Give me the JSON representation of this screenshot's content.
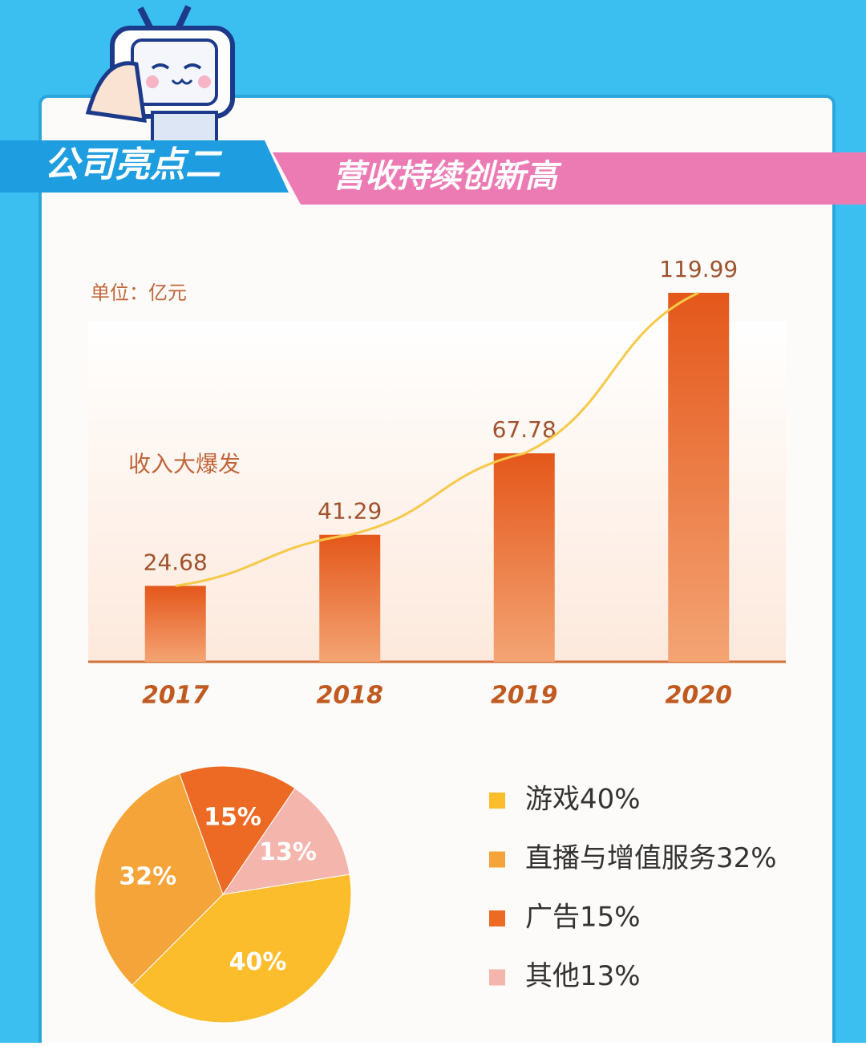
{
  "header": {
    "badge": "公司亮点二",
    "title": "营收持续创新高"
  },
  "chart_data": [
    {
      "type": "bar",
      "unit_label": "单位：亿元",
      "annotation": "收入大爆发",
      "categories": [
        "2017",
        "2018",
        "2019",
        "2020"
      ],
      "values": [
        24.68,
        41.29,
        67.78,
        119.99
      ],
      "color": "#e4571a",
      "line_color": "#f7c948"
    },
    {
      "type": "pie",
      "categories": [
        "游戏40%",
        "直播与增值服务32%",
        "广告15%",
        "其他13%"
      ],
      "values": [
        40,
        32,
        15,
        13
      ],
      "value_labels": [
        "40%",
        "32%",
        "15%",
        "13%"
      ],
      "colors": [
        "#fbbd2c",
        "#f5a43a",
        "#ec6a24",
        "#f4b5ad"
      ]
    }
  ]
}
